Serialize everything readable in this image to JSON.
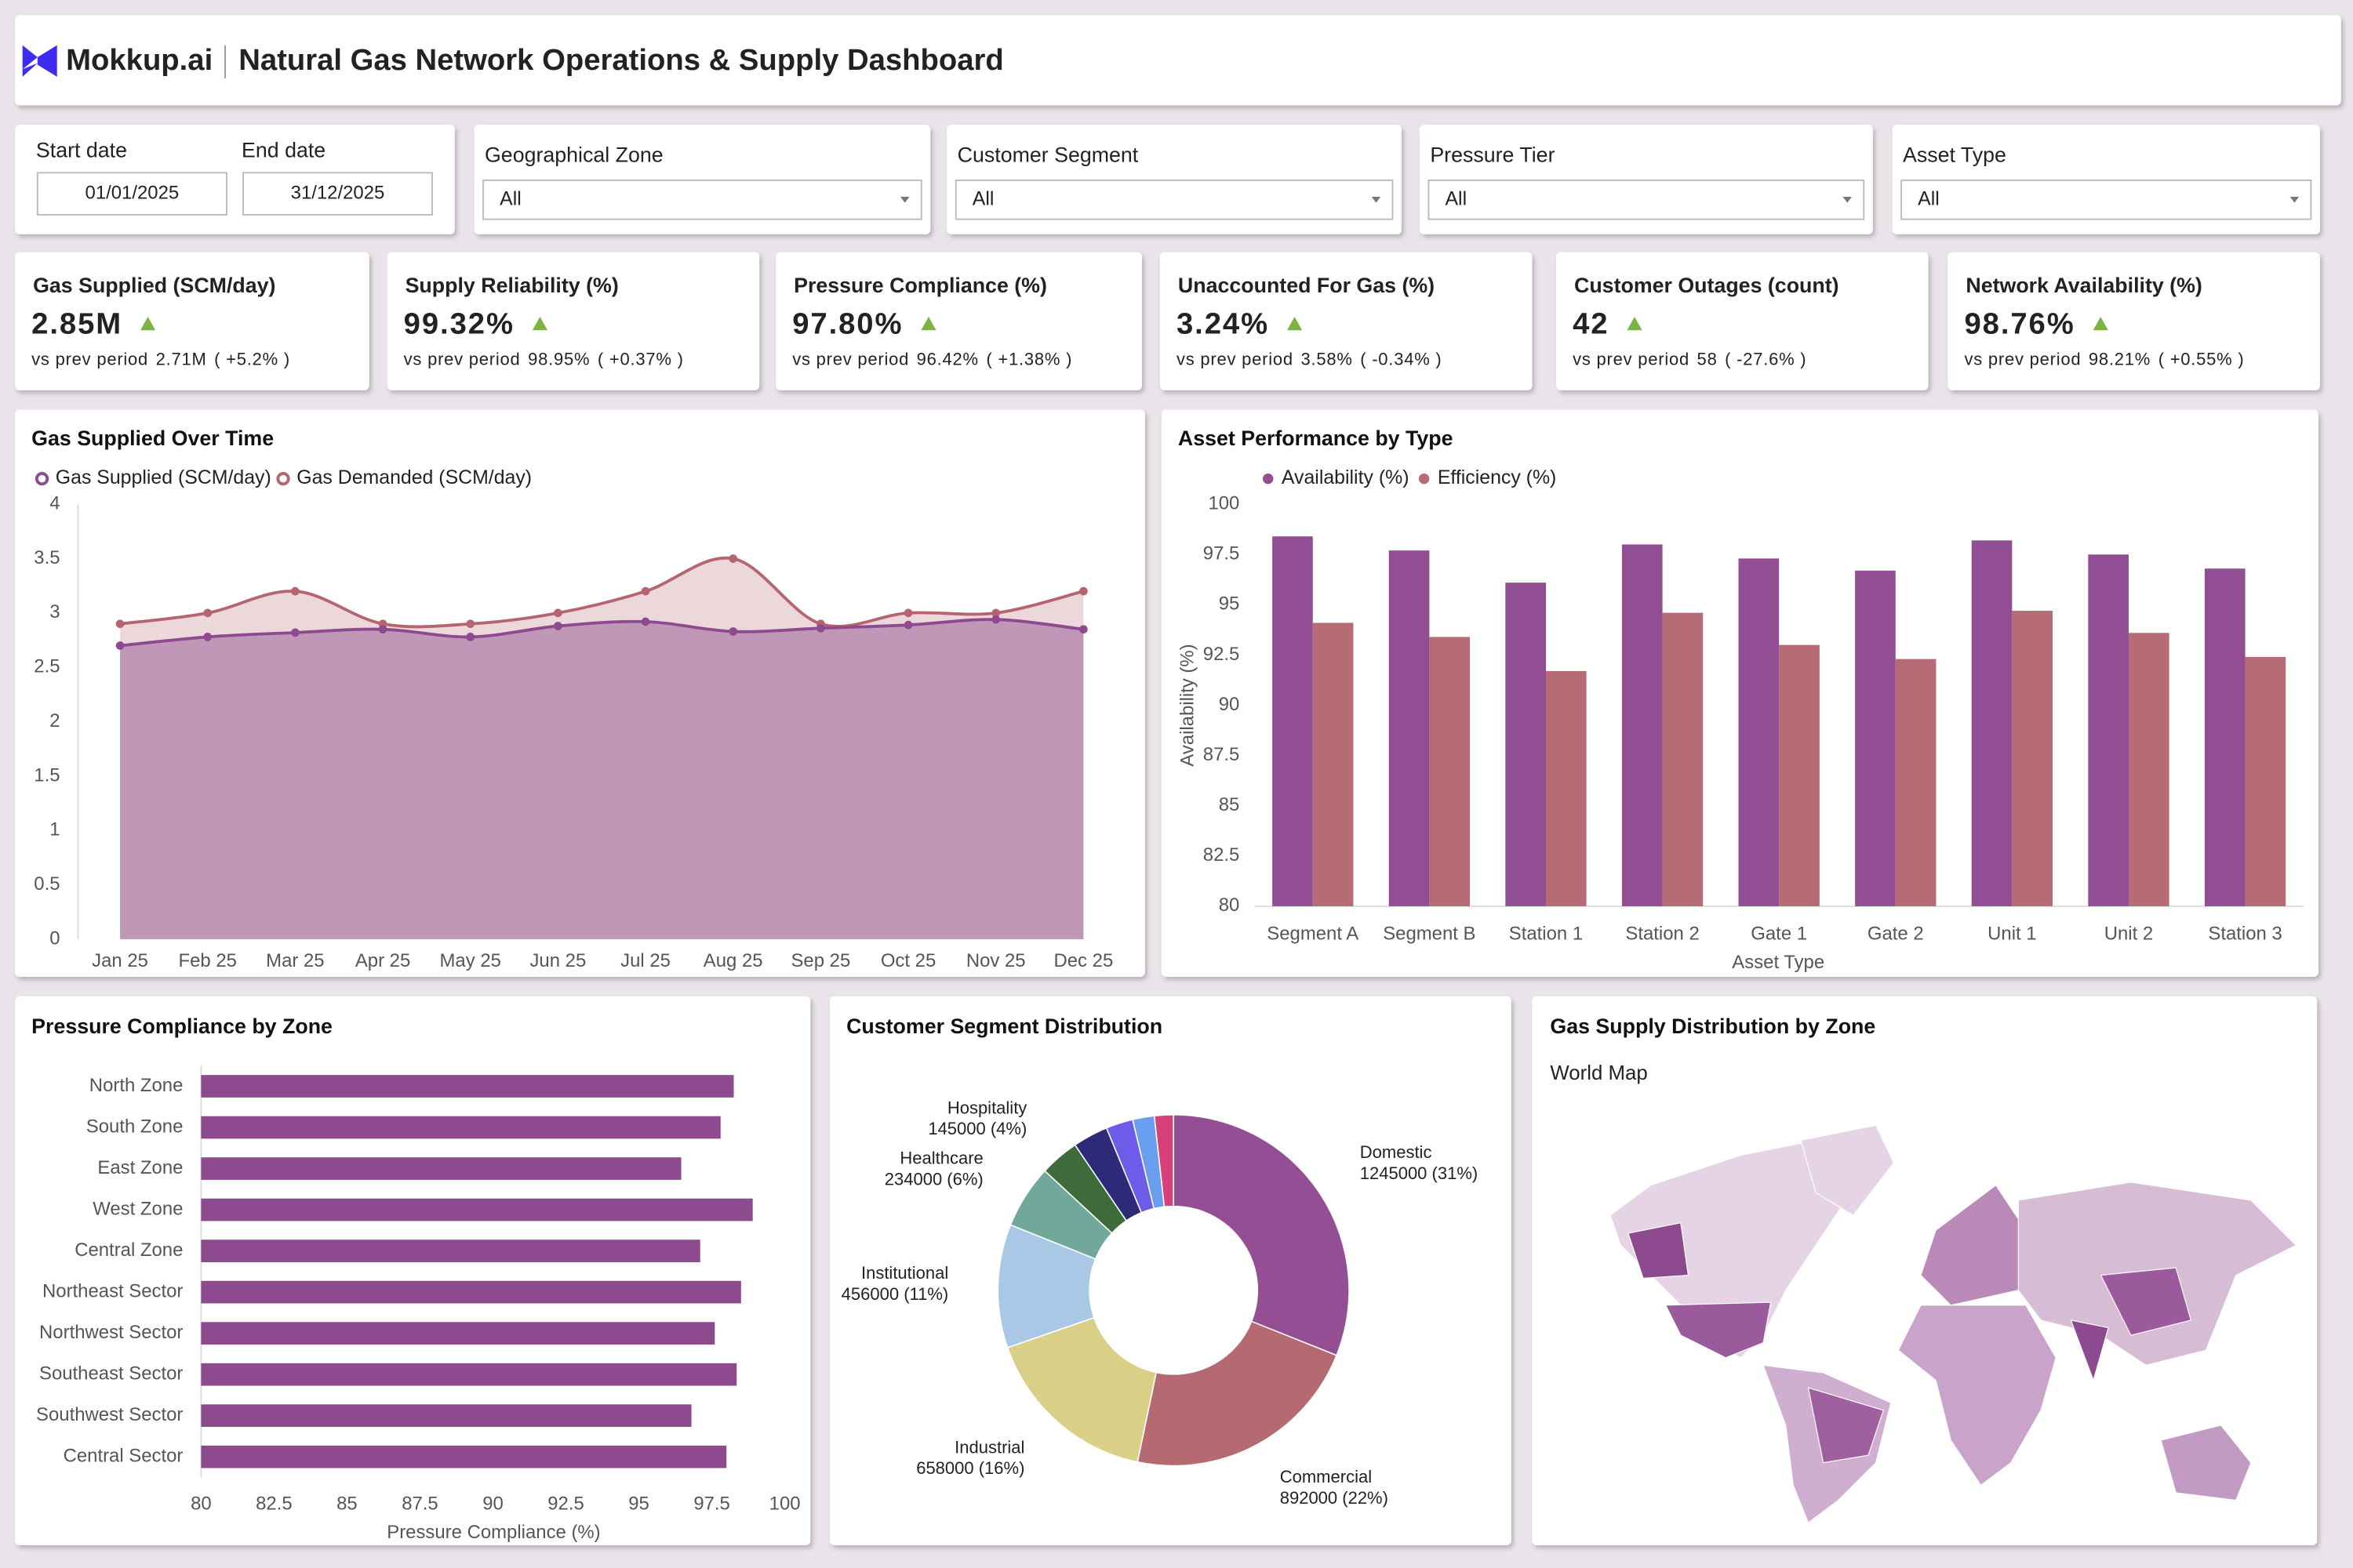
{
  "header": {
    "logo": "Mokkup.ai",
    "title": "Natural Gas Network Operations & Supply Dashboard"
  },
  "filters": {
    "start_date": {
      "label": "Start date",
      "value": "01/01/2025"
    },
    "end_date": {
      "label": "End date",
      "value": "31/12/2025"
    },
    "dropdowns": [
      {
        "label": "Geographical Zone",
        "value": "All"
      },
      {
        "label": "Customer Segment",
        "value": "All"
      },
      {
        "label": "Pressure Tier",
        "value": "All"
      },
      {
        "label": "Asset Type",
        "value": "All"
      }
    ]
  },
  "kpis": [
    {
      "title": "Gas Supplied (SCM/day)",
      "value": "2.85M",
      "prev_label": "vs prev period",
      "prev_value": "2.71M",
      "change": "( +5.2% )"
    },
    {
      "title": "Supply Reliability (%)",
      "value": "99.32%",
      "prev_label": "vs prev period",
      "prev_value": "98.95%",
      "change": "( +0.37% )"
    },
    {
      "title": "Pressure Compliance (%)",
      "value": "97.80%",
      "prev_label": "vs prev period",
      "prev_value": "96.42%",
      "change": "( +1.38% )"
    },
    {
      "title": "Unaccounted For Gas (%)",
      "value": "3.24%",
      "prev_label": "vs prev period",
      "prev_value": "3.58%",
      "change": "( -0.34% )"
    },
    {
      "title": "Customer Outages (count)",
      "value": "42",
      "prev_label": "vs prev period",
      "prev_value": "58",
      "change": "( -27.6% )"
    },
    {
      "title": "Network Availability (%)",
      "value": "98.76%",
      "prev_label": "vs prev period",
      "prev_value": "98.21%",
      "change": "( +0.55% )"
    }
  ],
  "chart_data": [
    {
      "type": "area",
      "title": "Gas Supplied Over Time",
      "categories": [
        "Jan 25",
        "Feb 25",
        "Mar 25",
        "Apr 25",
        "May 25",
        "Jun 25",
        "Jul 25",
        "Aug 25",
        "Sep 25",
        "Oct 25",
        "Nov 25",
        "Dec 25"
      ],
      "series": [
        {
          "name": "Gas Supplied (SCM/day)",
          "color": "#8e4a8f",
          "values": [
            2.7,
            2.78,
            2.82,
            2.85,
            2.78,
            2.88,
            2.92,
            2.83,
            2.86,
            2.89,
            2.94,
            2.85
          ]
        },
        {
          "name": "Gas Demanded (SCM/day)",
          "color": "#b5656f",
          "values": [
            2.9,
            3.0,
            3.2,
            2.9,
            2.9,
            3.0,
            3.2,
            3.5,
            2.9,
            3.0,
            3.0,
            3.2
          ]
        }
      ],
      "ylim": [
        0,
        4
      ],
      "yticks": [
        0,
        0.5,
        1,
        1.5,
        2,
        2.5,
        3,
        3.5,
        4
      ]
    },
    {
      "type": "bar",
      "title": "Asset Performance by Type",
      "y_label": "Availability (%)",
      "x_label": "Asset Type",
      "categories": [
        "Segment A",
        "Segment B",
        "Station 1",
        "Station 2",
        "Gate 1",
        "Gate 2",
        "Unit 1",
        "Unit 2",
        "Station 3"
      ],
      "series": [
        {
          "name": "Availability (%)",
          "color": "#914e93",
          "values": [
            98.4,
            97.7,
            96.1,
            98.0,
            97.3,
            96.7,
            98.2,
            97.5,
            96.8
          ]
        },
        {
          "name": "Efficiency (%)",
          "color": "#b56c74",
          "values": [
            94.1,
            93.4,
            91.7,
            94.6,
            93.0,
            92.3,
            94.7,
            93.6,
            92.4
          ]
        }
      ],
      "ylim": [
        80,
        100
      ],
      "yticks": [
        80,
        82.5,
        85,
        87.5,
        90,
        92.5,
        95,
        97.5,
        100
      ]
    },
    {
      "type": "barh",
      "title": "Pressure Compliance by Zone",
      "x_label": "Pressure Compliance (%)",
      "color": "#8e4a8f",
      "categories": [
        "North Zone",
        "South Zone",
        "East Zone",
        "West Zone",
        "Central Zone",
        "Northeast Sector",
        "Northwest Sector",
        "Southeast Sector",
        "Southwest Sector",
        "Central Sector"
      ],
      "values": [
        98.25,
        97.8,
        96.45,
        98.9,
        97.1,
        98.5,
        97.6,
        98.35,
        96.8,
        98.0
      ],
      "xlim": [
        80,
        100
      ],
      "xticks": [
        80,
        82.5,
        85,
        87.5,
        90,
        92.5,
        95,
        97.5,
        100
      ]
    },
    {
      "type": "donut",
      "title": "Customer Segment Distribution",
      "categories": [
        "Domestic",
        "Commercial",
        "Industrial",
        "Institutional",
        "Healthcare",
        "Hospitality",
        null,
        null,
        null,
        null
      ],
      "values": [
        1245000,
        892000,
        658000,
        456000,
        234000,
        145000,
        130000,
        100000,
        80000,
        70000
      ],
      "value_labels": [
        "1245000 (31%)",
        "892000 (22%)",
        "658000 (16%)",
        "456000 (11%)",
        "234000 (6%)",
        "145000 (4%)",
        null,
        null,
        null,
        null
      ],
      "colors": [
        "#944f94",
        "#b56a72",
        "#d9cf86",
        "#a8c8e6",
        "#72a89a",
        "#3e6b3a",
        "#2d2a7a",
        "#6c5ce7",
        "#6a9ff0",
        "#d8407a"
      ]
    }
  ],
  "map": {
    "title": "Gas Supply Distribution by Zone",
    "subtitle": "World Map"
  }
}
